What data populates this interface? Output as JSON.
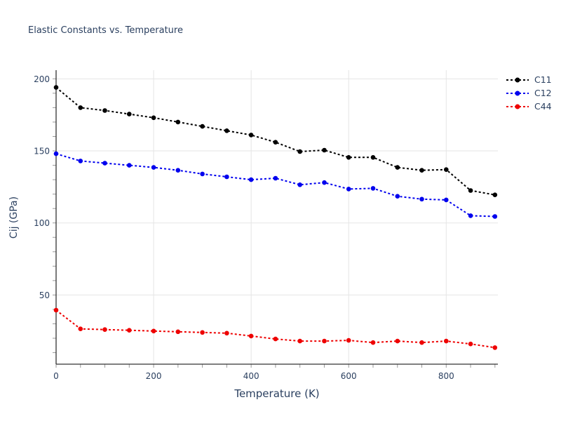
{
  "colors": {
    "background": "#ffffff",
    "text": "#2a3f5f",
    "grid": "#e5e5e5",
    "axis": "#333333",
    "tick": "#999999"
  },
  "legend": {
    "entries": [
      "C11",
      "C12",
      "C44"
    ]
  },
  "chart_data": {
    "type": "line",
    "title": "Elastic Constants vs. Temperature",
    "xlabel": "Temperature (K)",
    "ylabel": "Cij (GPa)",
    "xlim": [
      0,
      906
    ],
    "ylim": [
      2,
      206
    ],
    "x_ticks": [
      0,
      200,
      400,
      600,
      800
    ],
    "x_minor_step": 50,
    "x_minor_max": 900,
    "y_ticks": [
      50,
      100,
      150,
      200
    ],
    "y_minor_step": 10,
    "y_minor_max": 200,
    "grid": true,
    "legend_position": "top-right",
    "line_style": "dashed-with-dot-markers",
    "x": [
      0,
      50,
      100,
      150,
      200,
      250,
      300,
      350,
      400,
      450,
      500,
      550,
      600,
      650,
      700,
      750,
      800,
      850,
      900
    ],
    "series": [
      {
        "name": "C11",
        "color": "#000000",
        "values": [
          194,
          180,
          178,
          175.5,
          173,
          170,
          167,
          164,
          161,
          156,
          149.5,
          150.5,
          145.5,
          145.5,
          138.5,
          136.5,
          137,
          122.5,
          119.5
        ]
      },
      {
        "name": "C12",
        "color": "#0000ee",
        "values": [
          148,
          143,
          141.5,
          140,
          138.5,
          136.5,
          134,
          132,
          130,
          131,
          126.5,
          128,
          123.5,
          124,
          118.5,
          116.5,
          116,
          105,
          104.5
        ]
      },
      {
        "name": "C44",
        "color": "#ee0000",
        "values": [
          39.5,
          26.5,
          26,
          25.5,
          25,
          24.5,
          24,
          23.5,
          21.5,
          19.5,
          18,
          18,
          18.5,
          17,
          18,
          17,
          18,
          16,
          13.5
        ]
      }
    ]
  }
}
